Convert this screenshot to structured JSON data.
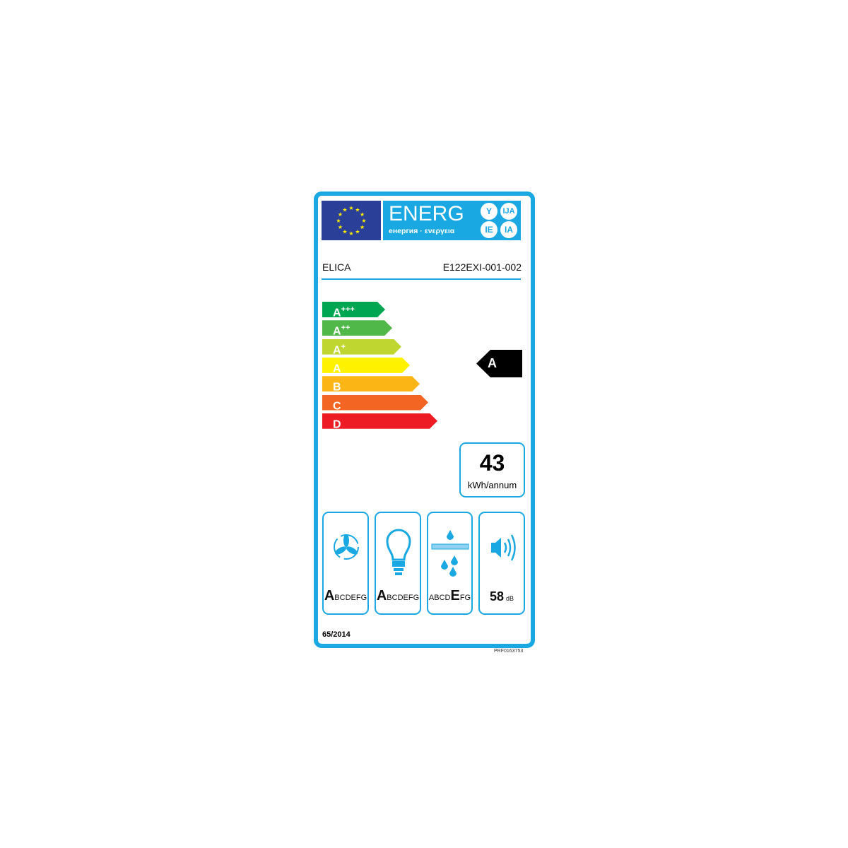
{
  "header": {
    "title": "ENERG",
    "subtitle": "енергия · ενεργεια",
    "languages": [
      "Y",
      "IJA",
      "IE",
      "IA"
    ]
  },
  "supplier": "ELICA",
  "model": "E122EXI-001-002",
  "classes": [
    {
      "label": "A",
      "sup": "+++",
      "color": "#00a651"
    },
    {
      "label": "A",
      "sup": "++",
      "color": "#50b848"
    },
    {
      "label": "A",
      "sup": "+",
      "color": "#bed62f"
    },
    {
      "label": "A",
      "sup": "",
      "color": "#fff200"
    },
    {
      "label": "B",
      "sup": "",
      "color": "#fbb616"
    },
    {
      "label": "C",
      "sup": "",
      "color": "#f26522"
    },
    {
      "label": "D",
      "sup": "",
      "color": "#ed1c24"
    }
  ],
  "rating": "A",
  "consumption": {
    "value": "43",
    "unit": "kWh/annum"
  },
  "pictograms": [
    {
      "icon": "fan-icon",
      "before": "",
      "selected": "A",
      "after": "BCDEFG"
    },
    {
      "icon": "light-bulb-icon",
      "before": "",
      "selected": "A",
      "after": "BCDEFG"
    },
    {
      "icon": "grease-filter-icon",
      "before": "ABCD",
      "selected": "E",
      "after": "FG"
    }
  ],
  "noise": {
    "icon": "speaker-icon",
    "value": "58",
    "unit": "dB"
  },
  "regulation": "65/2014",
  "code": "PRF0163753",
  "accent": "#1aa8e2"
}
